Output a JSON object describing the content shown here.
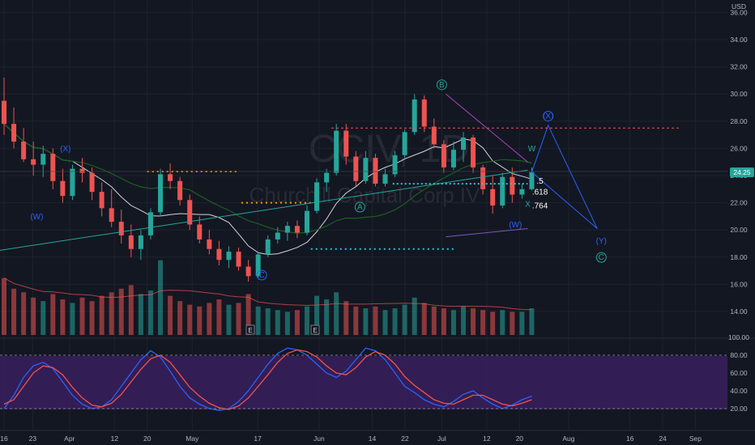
{
  "app": {
    "symbol_watermark": "CCIV, 1D",
    "company_watermark": "Churchill Capital Corp IV",
    "currency": "USD",
    "last_price_tag": "24.25"
  },
  "chart_data": [
    {
      "type": "candlestick",
      "ylim": [
        13.0,
        36.0
      ],
      "y_ticks": [
        {
          "label": "14.00",
          "value": 14
        },
        {
          "label": "16.00",
          "value": 16
        },
        {
          "label": "18.00",
          "value": 18
        },
        {
          "label": "20.00",
          "value": 20
        },
        {
          "label": "22.00",
          "value": 22
        },
        {
          "label": "24.00",
          "value": 24
        },
        {
          "label": "26.00",
          "value": 26
        },
        {
          "label": "28.00",
          "value": 28
        },
        {
          "label": "30.00",
          "value": 30
        },
        {
          "label": "32.00",
          "value": 32
        },
        {
          "label": "34.00",
          "value": 34
        },
        {
          "label": "36.00",
          "value": 36
        }
      ],
      "x_ticks": [
        {
          "label": "16",
          "day": 0
        },
        {
          "label": "23",
          "day": 7
        },
        {
          "label": "Apr",
          "day": 16
        },
        {
          "label": "12",
          "day": 27
        },
        {
          "label": "20",
          "day": 35
        },
        {
          "label": "May",
          "day": 46
        },
        {
          "label": "17",
          "day": 62
        },
        {
          "label": "Jun",
          "day": 77
        },
        {
          "label": "14",
          "day": 90
        },
        {
          "label": "22",
          "day": 98
        },
        {
          "label": "Jul",
          "day": 107
        },
        {
          "label": "12",
          "day": 118
        },
        {
          "label": "20",
          "day": 126
        },
        {
          "label": "Aug",
          "day": 138
        },
        {
          "label": "16",
          "day": 153
        },
        {
          "label": "24",
          "day": 161
        },
        {
          "label": "Sep",
          "day": 169
        }
      ],
      "ohlc": [
        [
          29.5,
          31.2,
          27.0,
          27.8
        ],
        [
          27.8,
          29.0,
          26.0,
          26.5
        ],
        [
          26.5,
          27.5,
          25.0,
          25.2
        ],
        [
          25.2,
          26.5,
          24.0,
          24.8
        ],
        [
          24.8,
          26.2,
          23.9,
          25.6
        ],
        [
          25.6,
          26.0,
          23.0,
          23.6
        ],
        [
          23.6,
          24.5,
          22.0,
          22.5
        ],
        [
          22.5,
          24.8,
          22.2,
          24.5
        ],
        [
          24.5,
          25.3,
          23.5,
          24.2
        ],
        [
          24.2,
          24.6,
          22.2,
          22.8
        ],
        [
          22.8,
          23.5,
          21.0,
          21.6
        ],
        [
          21.6,
          23.0,
          20.2,
          20.6
        ],
        [
          20.6,
          21.5,
          19.0,
          19.6
        ],
        [
          19.6,
          20.4,
          18.0,
          18.6
        ],
        [
          18.6,
          20.0,
          17.8,
          19.6
        ],
        [
          19.6,
          21.6,
          19.3,
          21.3
        ],
        [
          21.3,
          24.5,
          21.0,
          24.1
        ],
        [
          24.1,
          24.9,
          23.0,
          23.6
        ],
        [
          23.6,
          23.9,
          21.8,
          22.2
        ],
        [
          22.2,
          22.6,
          20.0,
          20.4
        ],
        [
          20.4,
          21.0,
          19.0,
          19.3
        ],
        [
          19.3,
          20.0,
          18.2,
          18.6
        ],
        [
          18.6,
          19.2,
          17.4,
          17.8
        ],
        [
          17.8,
          18.8,
          17.2,
          18.4
        ],
        [
          18.4,
          18.7,
          17.0,
          17.3
        ],
        [
          17.3,
          17.8,
          16.2,
          16.6
        ],
        [
          16.6,
          18.4,
          16.5,
          18.2
        ],
        [
          18.2,
          19.6,
          18.0,
          19.3
        ],
        [
          19.3,
          20.2,
          19.0,
          19.8
        ],
        [
          19.8,
          20.6,
          19.2,
          20.3
        ],
        [
          20.3,
          20.7,
          19.4,
          19.8
        ],
        [
          19.8,
          21.8,
          19.6,
          21.4
        ],
        [
          21.4,
          23.8,
          21.2,
          23.5
        ],
        [
          23.5,
          24.5,
          22.8,
          24.2
        ],
        [
          24.2,
          27.8,
          24.0,
          27.3
        ],
        [
          27.3,
          27.8,
          24.8,
          25.4
        ],
        [
          25.4,
          25.8,
          23.2,
          23.6
        ],
        [
          23.6,
          25.8,
          23.4,
          25.3
        ],
        [
          25.3,
          25.6,
          23.2,
          23.4
        ],
        [
          23.4,
          24.5,
          23.2,
          24.1
        ],
        [
          24.1,
          25.8,
          23.9,
          25.5
        ],
        [
          25.5,
          27.4,
          25.3,
          27.2
        ],
        [
          27.2,
          30.0,
          27.0,
          29.6
        ],
        [
          29.6,
          29.9,
          27.2,
          27.6
        ],
        [
          27.6,
          28.2,
          26.0,
          26.3
        ],
        [
          26.3,
          26.6,
          24.2,
          24.6
        ],
        [
          24.6,
          26.5,
          24.4,
          25.9
        ],
        [
          25.9,
          27.2,
          25.0,
          26.8
        ],
        [
          26.8,
          27.0,
          24.2,
          24.6
        ],
        [
          24.6,
          24.8,
          22.6,
          23.0
        ],
        [
          23.0,
          24.0,
          21.2,
          21.8
        ],
        [
          21.8,
          24.2,
          21.6,
          23.9
        ],
        [
          23.9,
          24.6,
          22.0,
          22.6
        ],
        [
          22.6,
          23.4,
          22.3,
          23.0
        ],
        [
          23.0,
          24.6,
          22.9,
          24.25
        ]
      ],
      "volumes": [
        3.2,
        2.6,
        2.4,
        2.1,
        1.9,
        2.3,
        2.0,
        1.8,
        2.1,
        1.9,
        2.2,
        2.4,
        2.6,
        2.8,
        2.3,
        2.5,
        4.2,
        2.2,
        1.9,
        1.7,
        1.6,
        1.8,
        2.0,
        1.7,
        1.8,
        2.3,
        1.6,
        1.5,
        1.4,
        1.3,
        1.4,
        1.6,
        2.2,
        2.0,
        2.4,
        1.9,
        1.6,
        1.5,
        1.6,
        1.4,
        1.5,
        1.7,
        2.1,
        1.8,
        1.6,
        1.5,
        1.4,
        1.6,
        1.5,
        1.4,
        1.3,
        1.4,
        1.3,
        1.3,
        1.5
      ],
      "stoch_y_ticks": [
        "20.00",
        "40.00",
        "60.00",
        "80.00",
        "100.00"
      ],
      "stoch_k": [
        20,
        35,
        55,
        68,
        72,
        65,
        50,
        35,
        25,
        20,
        22,
        30,
        45,
        60,
        75,
        85,
        78,
        62,
        45,
        32,
        25,
        20,
        18,
        20,
        28,
        40,
        55,
        70,
        82,
        88,
        86,
        80,
        70,
        60,
        55,
        62,
        75,
        88,
        85,
        75,
        60,
        45,
        38,
        30,
        25,
        22,
        28,
        36,
        40,
        32,
        25,
        20,
        24,
        30,
        34
      ],
      "stoch_d": [
        25,
        30,
        45,
        60,
        68,
        66,
        58,
        44,
        32,
        24,
        22,
        26,
        36,
        50,
        64,
        76,
        80,
        72,
        58,
        44,
        34,
        26,
        21,
        19,
        23,
        32,
        45,
        58,
        72,
        82,
        86,
        84,
        78,
        68,
        60,
        58,
        66,
        78,
        84,
        80,
        70,
        56,
        46,
        38,
        30,
        26,
        25,
        30,
        35,
        35,
        30,
        25,
        23,
        26,
        30
      ]
    }
  ],
  "annotations": {
    "wave_labels": [
      {
        "text": "(X)",
        "day": 15,
        "price": 25.8,
        "color": "#2962ff"
      },
      {
        "text": "(W)",
        "day": 8,
        "price": 20.8,
        "color": "#2962ff"
      },
      {
        "text": "C",
        "day": 63,
        "price": 16.5,
        "color": "#2962ff",
        "circled": true
      },
      {
        "text": "A",
        "day": 87,
        "price": 21.5,
        "color": "#26a69a",
        "circled": true
      },
      {
        "text": "B",
        "day": 107,
        "price": 30.5,
        "color": "#26a69a",
        "circled": true
      },
      {
        "text": "(W)",
        "day": 125,
        "price": 20.2,
        "color": "#2962ff"
      },
      {
        "text": "W",
        "day": 129,
        "price": 25.8,
        "color": "#26a69a"
      },
      {
        "text": "X",
        "day": 128,
        "price": 21.7,
        "color": "#26a69a"
      },
      {
        "text": "(X)",
        "day": 133,
        "price": 28.2,
        "color": "#2962ff",
        "circled": true
      },
      {
        "text": "(Y)",
        "day": 146,
        "price": 19.0,
        "color": "#2962ff"
      },
      {
        "text": "C",
        "day": 146,
        "price": 17.8,
        "color": "#26a69a",
        "circled": true
      },
      {
        "text": ".5",
        "day": 131,
        "price": 23.4,
        "color": "#ffffff"
      },
      {
        "text": ".618",
        "day": 131,
        "price": 22.6,
        "color": "#ffffff"
      },
      {
        "text": ".764",
        "day": 131,
        "price": 21.6,
        "color": "#ffffff"
      }
    ],
    "earnings_markers": [
      "E",
      "E"
    ]
  }
}
